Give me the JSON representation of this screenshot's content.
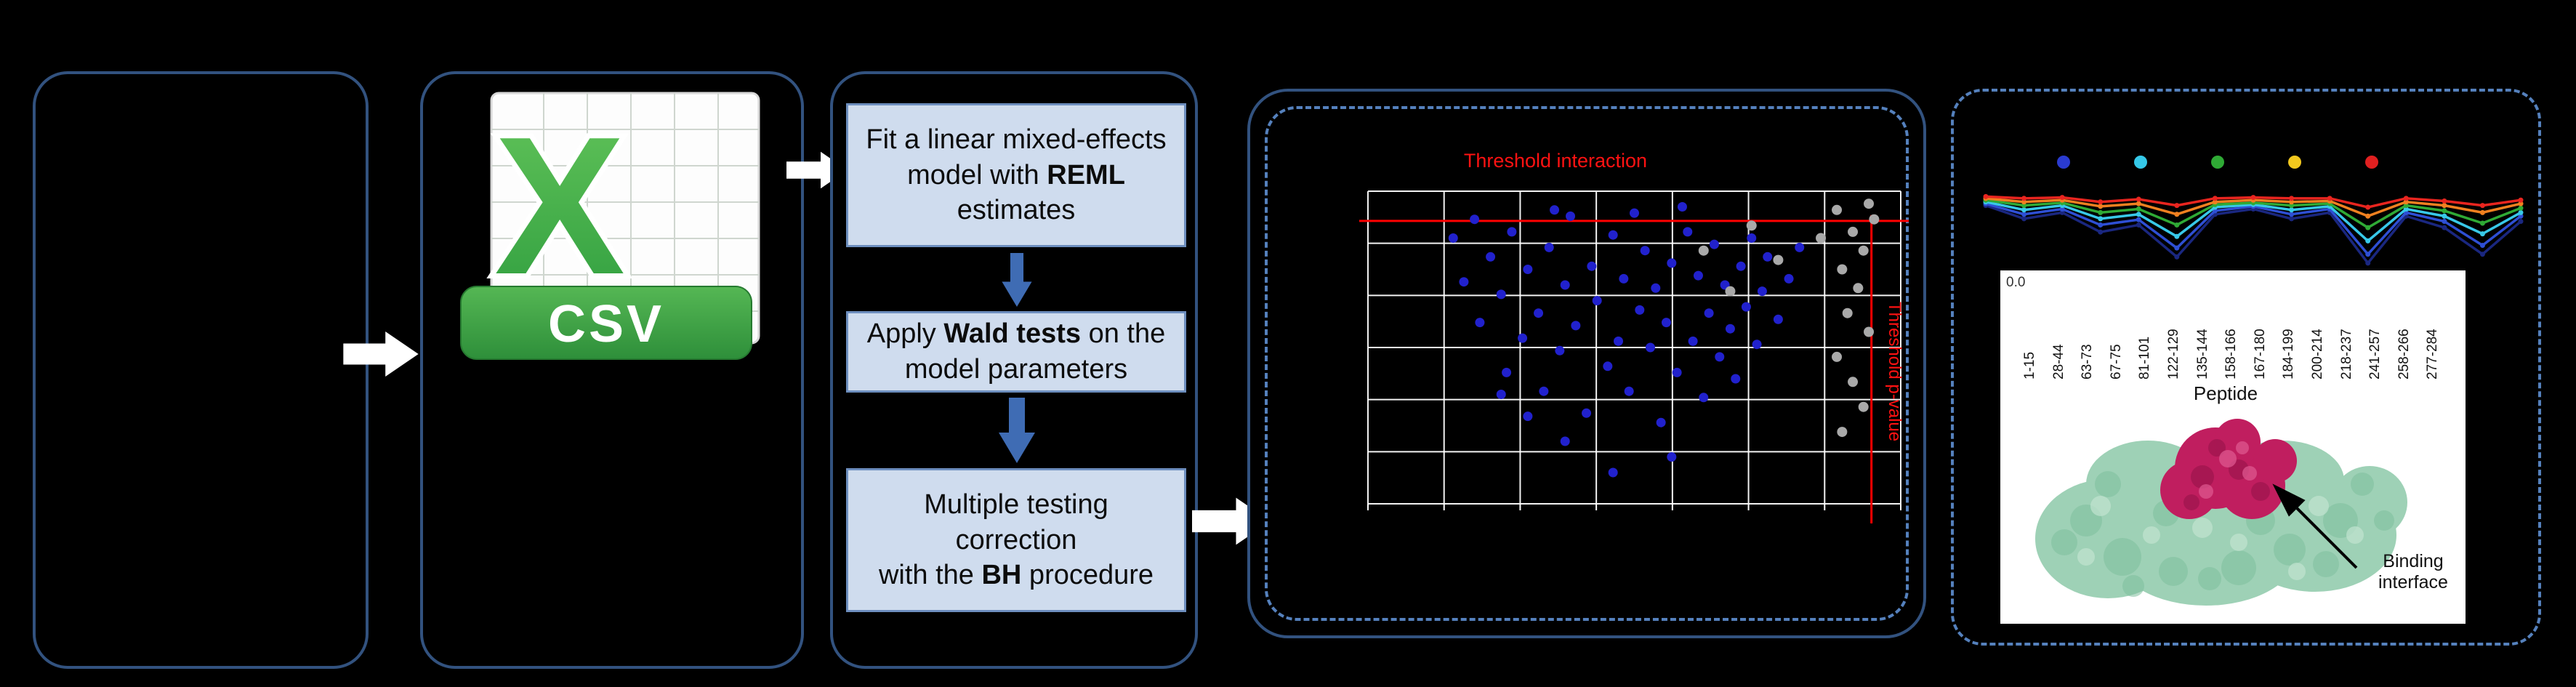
{
  "workflow": {
    "csv_icon_label": "CSV",
    "steps": {
      "step1": {
        "t1": "Fit a linear mixed-effects model with ",
        "bold": "REML",
        "t2": " estimates"
      },
      "step2": {
        "t1": "Apply ",
        "bold": "Wald tests",
        "t2": " on the model parameters"
      },
      "step3": {
        "t1": "Multiple testing correction",
        "t2": "with the ",
        "bold": "BH",
        "t3": " procedure"
      }
    }
  },
  "protein": {
    "binding_line1": "Binding",
    "binding_line2": "interface"
  },
  "chart_data": [
    {
      "type": "scatter",
      "name": "threshold-scatter-plot",
      "annotations": [
        {
          "text": "Threshold interaction",
          "color": "#ff1212",
          "position": "top"
        },
        {
          "text": "Threshold p-value",
          "color": "#ff1212",
          "position": "right-vertical"
        }
      ],
      "grid": {
        "v_lines": 8,
        "h_lines": 7,
        "color": "#ffffff",
        "background": "#000000"
      },
      "threshold_lines": {
        "horizontal_y_pct": 9.5,
        "vertical_x_pct": 94.5,
        "color": "#ff0000"
      },
      "series": [
        {
          "name": "blue-points",
          "color": "#2121cd",
          "point_radius": 6.5,
          "points_pct": [
            [
              16,
              15
            ],
            [
              18,
              29
            ],
            [
              20,
              9
            ],
            [
              21,
              42
            ],
            [
              23,
              21
            ],
            [
              25,
              33
            ],
            [
              26,
              58
            ],
            [
              27,
              13
            ],
            [
              29,
              47
            ],
            [
              30,
              25
            ],
            [
              32,
              39
            ],
            [
              33,
              64
            ],
            [
              34,
              18
            ],
            [
              36,
              51
            ],
            [
              37,
              30
            ],
            [
              38,
              8
            ],
            [
              39,
              43
            ],
            [
              41,
              71
            ],
            [
              42,
              24
            ],
            [
              43,
              35
            ],
            [
              45,
              56
            ],
            [
              46,
              14
            ],
            [
              47,
              48
            ],
            [
              48,
              28
            ],
            [
              49,
              64
            ],
            [
              51,
              38
            ],
            [
              52,
              19
            ],
            [
              53,
              50
            ],
            [
              54,
              31
            ],
            [
              55,
              74
            ],
            [
              56,
              42
            ],
            [
              57,
              23
            ],
            [
              58,
              58
            ],
            [
              59,
              5
            ],
            [
              60,
              13
            ],
            [
              61,
              48
            ],
            [
              62,
              27
            ],
            [
              63,
              66
            ],
            [
              64,
              39
            ],
            [
              65,
              17
            ],
            [
              66,
              53
            ],
            [
              67,
              30
            ],
            [
              68,
              44
            ],
            [
              69,
              60
            ],
            [
              70,
              24
            ],
            [
              71,
              37
            ],
            [
              72,
              15
            ],
            [
              73,
              49
            ],
            [
              74,
              32
            ],
            [
              75,
              21
            ],
            [
              77,
              41
            ],
            [
              79,
              28
            ],
            [
              81,
              18
            ],
            [
              57,
              85
            ],
            [
              46,
              90
            ],
            [
              37,
              80
            ],
            [
              30,
              72
            ],
            [
              25,
              65
            ],
            [
              35,
              6
            ],
            [
              50,
              7
            ]
          ]
        },
        {
          "name": "gray-points",
          "color": "#a9a9a9",
          "point_radius": 7,
          "points_pct": [
            [
              88,
              6
            ],
            [
              91,
              13
            ],
            [
              93,
              19
            ],
            [
              89,
              25
            ],
            [
              92,
              31
            ],
            [
              90,
              39
            ],
            [
              94,
              45
            ],
            [
              88,
              53
            ],
            [
              91,
              61
            ],
            [
              93,
              69
            ],
            [
              89,
              77
            ],
            [
              72,
              11
            ],
            [
              77,
              22
            ],
            [
              63,
              19
            ],
            [
              68,
              32
            ],
            [
              95,
              9
            ],
            [
              85,
              15
            ],
            [
              94,
              4
            ]
          ]
        }
      ]
    },
    {
      "type": "line",
      "name": "per-peptide-uptake-lines",
      "categories": [
        "1-15",
        "28-44",
        "63-73",
        "67-75",
        "81-101",
        "122-129",
        "135-144",
        "158-166",
        "167-180",
        "184-199",
        "200-214",
        "218-237",
        "241-257",
        "258-266",
        "277-284"
      ],
      "x_axis_title": "Peptide",
      "visible_y_tick": "0.0",
      "y_unit": "percent-of-plot-height-from-top",
      "background": "#000000",
      "legend_dot_colors": [
        "#2a3bd0",
        "#35c8e8",
        "#2faa35",
        "#f2c81e",
        "#e02020"
      ],
      "series": [
        {
          "name": "navy",
          "color": "#1a2780",
          "y_pct": [
            30,
            45,
            38,
            60,
            52,
            88,
            40,
            34,
            45,
            38,
            95,
            42,
            55,
            85,
            48
          ]
        },
        {
          "name": "blue",
          "color": "#2e4fd4",
          "y_pct": [
            28,
            40,
            34,
            52,
            46,
            78,
            36,
            31,
            40,
            34,
            85,
            38,
            48,
            75,
            42
          ]
        },
        {
          "name": "cyan",
          "color": "#38c8e8",
          "y_pct": [
            26,
            35,
            30,
            45,
            40,
            65,
            32,
            29,
            35,
            31,
            70,
            34,
            42,
            62,
            38
          ]
        },
        {
          "name": "green",
          "color": "#2faa35",
          "y_pct": [
            24,
            30,
            27,
            38,
            34,
            52,
            29,
            27,
            30,
            28,
            55,
            30,
            36,
            50,
            33
          ]
        },
        {
          "name": "orange",
          "color": "#f08020",
          "y_pct": [
            22,
            26,
            24,
            31,
            28,
            40,
            26,
            24,
            26,
            25,
            42,
            26,
            30,
            38,
            28
          ]
        },
        {
          "name": "red",
          "color": "#e8251f",
          "y_pct": [
            20,
            22,
            21,
            26,
            23,
            30,
            22,
            21,
            22,
            22,
            32,
            22,
            25,
            30,
            24
          ]
        }
      ]
    }
  ]
}
